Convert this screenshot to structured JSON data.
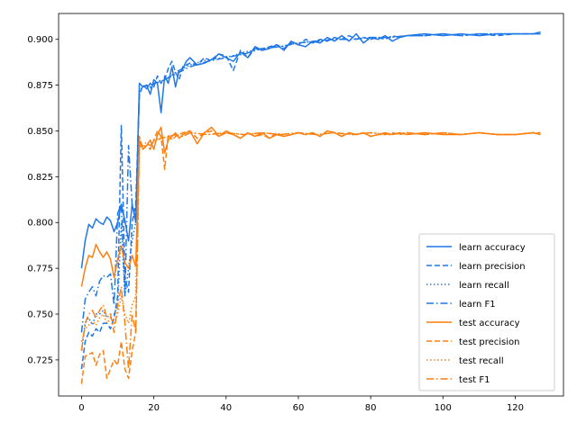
{
  "chart_data": {
    "type": "line",
    "title": "",
    "xlabel": "",
    "ylabel": "",
    "xlim": [
      -6.35,
      133.35
    ],
    "ylim": [
      0.7053,
      0.9141
    ],
    "xticks": [
      0,
      20,
      40,
      60,
      80,
      100,
      120
    ],
    "yticks": [
      0.725,
      0.75,
      0.775,
      0.8,
      0.825,
      0.85,
      0.875,
      0.9
    ],
    "ytick_format": 3,
    "grid": false,
    "legend": {
      "position": "lower-right"
    },
    "colors": {
      "learn": "#1f77e8",
      "test": "#ff7f0e"
    },
    "series": [
      {
        "name": "learn accuracy",
        "color": "#1f77e8",
        "dash": "solid",
        "x": [
          0,
          1,
          2,
          3,
          4,
          5,
          6,
          7,
          8,
          9,
          10,
          11,
          12,
          13,
          14,
          15,
          16,
          17,
          18,
          19,
          20,
          21,
          22,
          23,
          24,
          25,
          26,
          27,
          28,
          29,
          30,
          32,
          34,
          36,
          38,
          40,
          42,
          44,
          46,
          48,
          50,
          52,
          54,
          56,
          58,
          60,
          62,
          64,
          66,
          68,
          70,
          72,
          74,
          76,
          78,
          80,
          82,
          84,
          86,
          88,
          90,
          95,
          100,
          105,
          110,
          115,
          120,
          125,
          127
        ],
        "y": [
          0.775,
          0.79,
          0.799,
          0.797,
          0.802,
          0.8,
          0.799,
          0.803,
          0.801,
          0.795,
          0.8,
          0.81,
          0.801,
          0.79,
          0.81,
          0.8,
          0.876,
          0.874,
          0.875,
          0.87,
          0.878,
          0.876,
          0.86,
          0.88,
          0.876,
          0.885,
          0.874,
          0.883,
          0.884,
          0.888,
          0.89,
          0.886,
          0.887,
          0.889,
          0.892,
          0.89,
          0.888,
          0.893,
          0.89,
          0.896,
          0.894,
          0.895,
          0.897,
          0.894,
          0.899,
          0.897,
          0.896,
          0.899,
          0.898,
          0.901,
          0.899,
          0.902,
          0.899,
          0.903,
          0.898,
          0.901,
          0.9,
          0.902,
          0.899,
          0.901,
          0.902,
          0.903,
          0.902,
          0.903,
          0.902,
          0.903,
          0.903,
          0.903,
          0.904
        ]
      },
      {
        "name": "learn precision",
        "color": "#1f77e8",
        "dash": "6,3",
        "x": [
          0,
          1,
          2,
          3,
          4,
          5,
          6,
          7,
          8,
          9,
          10,
          11,
          12,
          13,
          14,
          15,
          16,
          17,
          18,
          19,
          20,
          21,
          22,
          23,
          24,
          25,
          26,
          27,
          28,
          30,
          32,
          34,
          36,
          38,
          40,
          42,
          44,
          46,
          48,
          50,
          52,
          54,
          56,
          58,
          60,
          62,
          64,
          66,
          68,
          70,
          72,
          74,
          76,
          78,
          80,
          82,
          84,
          86,
          88,
          90,
          95,
          100,
          105,
          110,
          115,
          120,
          125,
          127
        ],
        "y": [
          0.72,
          0.735,
          0.74,
          0.738,
          0.742,
          0.74,
          0.745,
          0.745,
          0.742,
          0.748,
          0.76,
          0.853,
          0.77,
          0.762,
          0.8,
          0.81,
          0.87,
          0.875,
          0.873,
          0.876,
          0.874,
          0.88,
          0.876,
          0.878,
          0.884,
          0.888,
          0.882,
          0.878,
          0.885,
          0.887,
          0.886,
          0.89,
          0.888,
          0.892,
          0.891,
          0.883,
          0.894,
          0.89,
          0.895,
          0.894,
          0.896,
          0.897,
          0.895,
          0.898,
          0.897,
          0.9,
          0.898,
          0.9,
          0.899,
          0.901,
          0.9,
          0.902,
          0.9,
          0.901,
          0.9,
          0.901,
          0.9,
          0.902,
          0.901,
          0.902,
          0.902,
          0.903,
          0.902,
          0.903,
          0.902,
          0.903,
          0.903,
          0.903
        ]
      },
      {
        "name": "learn recall",
        "color": "#1f77e8",
        "dash": "1.5,2.5",
        "x": [
          0,
          1,
          2,
          3,
          4,
          5,
          6,
          7,
          8,
          9,
          10,
          11,
          12,
          13,
          14,
          15,
          16,
          17,
          18,
          19,
          20,
          22,
          24,
          26,
          28,
          30,
          35,
          40,
          45,
          50,
          55,
          60,
          65,
          70,
          75,
          80,
          85,
          90,
          95,
          100,
          105,
          110,
          115,
          120,
          125,
          127
        ],
        "y": [
          0.73,
          0.745,
          0.748,
          0.744,
          0.75,
          0.75,
          0.752,
          0.748,
          0.75,
          0.75,
          0.755,
          0.8,
          0.76,
          0.775,
          0.79,
          0.8,
          0.872,
          0.874,
          0.875,
          0.874,
          0.876,
          0.877,
          0.879,
          0.882,
          0.884,
          0.886,
          0.889,
          0.89,
          0.893,
          0.895,
          0.896,
          0.898,
          0.899,
          0.9,
          0.9,
          0.901,
          0.901,
          0.902,
          0.902,
          0.903,
          0.902,
          0.903,
          0.903,
          0.903,
          0.903,
          0.904
        ]
      },
      {
        "name": "learn F1",
        "color": "#1f77e8",
        "dash": "8,3,1.5,3",
        "x": [
          0,
          1,
          2,
          3,
          4,
          5,
          6,
          7,
          8,
          9,
          10,
          11,
          12,
          13,
          14,
          15,
          16,
          17,
          18,
          19,
          20,
          22,
          24,
          26,
          28,
          30,
          35,
          40,
          45,
          50,
          55,
          60,
          65,
          70,
          75,
          80,
          85,
          90,
          95,
          100,
          105,
          110,
          115,
          120,
          125,
          127
        ],
        "y": [
          0.74,
          0.758,
          0.762,
          0.765,
          0.76,
          0.768,
          0.771,
          0.77,
          0.772,
          0.755,
          0.805,
          0.81,
          0.76,
          0.842,
          0.81,
          0.802,
          0.87,
          0.874,
          0.875,
          0.873,
          0.876,
          0.877,
          0.879,
          0.881,
          0.883,
          0.885,
          0.888,
          0.89,
          0.892,
          0.895,
          0.896,
          0.898,
          0.899,
          0.9,
          0.9,
          0.901,
          0.901,
          0.902,
          0.902,
          0.903,
          0.902,
          0.903,
          0.903,
          0.903,
          0.903,
          0.903
        ]
      },
      {
        "name": "test accuracy",
        "color": "#ff7f0e",
        "dash": "solid",
        "x": [
          0,
          1,
          2,
          3,
          4,
          5,
          6,
          7,
          8,
          9,
          10,
          11,
          12,
          13,
          14,
          15,
          16,
          17,
          18,
          19,
          20,
          21,
          22,
          23,
          24,
          25,
          26,
          27,
          28,
          30,
          32,
          34,
          36,
          38,
          40,
          42,
          44,
          46,
          48,
          50,
          52,
          54,
          56,
          58,
          60,
          62,
          64,
          66,
          68,
          70,
          72,
          74,
          76,
          78,
          80,
          82,
          84,
          86,
          88,
          90,
          95,
          100,
          105,
          110,
          115,
          120,
          125,
          127
        ],
        "y": [
          0.765,
          0.775,
          0.782,
          0.781,
          0.788,
          0.784,
          0.781,
          0.784,
          0.78,
          0.77,
          0.78,
          0.787,
          0.778,
          0.775,
          0.782,
          0.776,
          0.845,
          0.84,
          0.842,
          0.845,
          0.84,
          0.848,
          0.852,
          0.838,
          0.845,
          0.847,
          0.849,
          0.846,
          0.848,
          0.85,
          0.843,
          0.849,
          0.852,
          0.847,
          0.85,
          0.848,
          0.846,
          0.849,
          0.847,
          0.849,
          0.846,
          0.848,
          0.847,
          0.848,
          0.849,
          0.848,
          0.849,
          0.847,
          0.85,
          0.849,
          0.847,
          0.849,
          0.848,
          0.849,
          0.847,
          0.848,
          0.849,
          0.848,
          0.849,
          0.848,
          0.849,
          0.848,
          0.848,
          0.849,
          0.848,
          0.848,
          0.849,
          0.848
        ]
      },
      {
        "name": "test precision",
        "color": "#ff7f0e",
        "dash": "6,3",
        "x": [
          0,
          1,
          2,
          3,
          4,
          5,
          6,
          7,
          8,
          9,
          10,
          11,
          12,
          13,
          14,
          15,
          16,
          17,
          18,
          19,
          20,
          21,
          22,
          23,
          24,
          25,
          26,
          28,
          30,
          32,
          34,
          36,
          38,
          40,
          42,
          44,
          46,
          48,
          50,
          52,
          54,
          56,
          58,
          60,
          62,
          64,
          66,
          68,
          70,
          72,
          74,
          76,
          78,
          80,
          82,
          84,
          86,
          88,
          90,
          95,
          100,
          105,
          110,
          115,
          120,
          125,
          127
        ],
        "y": [
          0.712,
          0.727,
          0.728,
          0.729,
          0.722,
          0.728,
          0.73,
          0.715,
          0.72,
          0.725,
          0.722,
          0.735,
          0.72,
          0.715,
          0.73,
          0.74,
          0.847,
          0.84,
          0.842,
          0.84,
          0.845,
          0.85,
          0.847,
          0.829,
          0.848,
          0.845,
          0.847,
          0.849,
          0.85,
          0.846,
          0.849,
          0.85,
          0.847,
          0.849,
          0.848,
          0.846,
          0.849,
          0.847,
          0.848,
          0.846,
          0.849,
          0.847,
          0.848,
          0.849,
          0.848,
          0.849,
          0.847,
          0.85,
          0.849,
          0.847,
          0.849,
          0.848,
          0.849,
          0.847,
          0.848,
          0.848,
          0.849,
          0.848,
          0.849,
          0.848,
          0.849,
          0.848,
          0.849,
          0.848,
          0.848,
          0.849,
          0.849
        ]
      },
      {
        "name": "test recall",
        "color": "#ff7f0e",
        "dash": "1.5,2.5",
        "x": [
          0,
          1,
          2,
          3,
          4,
          5,
          6,
          7,
          8,
          9,
          10,
          11,
          12,
          13,
          14,
          15,
          16,
          17,
          18,
          19,
          20,
          22,
          24,
          26,
          28,
          30,
          35,
          40,
          45,
          50,
          55,
          60,
          65,
          70,
          75,
          80,
          85,
          90,
          95,
          100,
          105,
          110,
          115,
          120,
          125,
          127
        ],
        "y": [
          0.735,
          0.742,
          0.744,
          0.746,
          0.744,
          0.748,
          0.75,
          0.745,
          0.748,
          0.745,
          0.75,
          0.76,
          0.75,
          0.745,
          0.755,
          0.76,
          0.843,
          0.842,
          0.844,
          0.843,
          0.845,
          0.846,
          0.847,
          0.848,
          0.847,
          0.849,
          0.848,
          0.849,
          0.848,
          0.849,
          0.848,
          0.849,
          0.848,
          0.849,
          0.848,
          0.849,
          0.848,
          0.849,
          0.848,
          0.849,
          0.848,
          0.849,
          0.848,
          0.848,
          0.849,
          0.848
        ]
      },
      {
        "name": "test F1",
        "color": "#ff7f0e",
        "dash": "8,3,1.5,3",
        "x": [
          0,
          1,
          2,
          3,
          4,
          5,
          6,
          7,
          8,
          9,
          10,
          11,
          12,
          13,
          14,
          15,
          16,
          17,
          18,
          19,
          20,
          22,
          24,
          26,
          28,
          30,
          35,
          40,
          45,
          50,
          55,
          60,
          65,
          70,
          75,
          80,
          85,
          90,
          95,
          100,
          105,
          110,
          115,
          120,
          125,
          127
        ],
        "y": [
          0.73,
          0.745,
          0.75,
          0.752,
          0.748,
          0.752,
          0.755,
          0.748,
          0.75,
          0.74,
          0.755,
          0.765,
          0.745,
          0.72,
          0.75,
          0.74,
          0.842,
          0.841,
          0.843,
          0.842,
          0.844,
          0.846,
          0.847,
          0.848,
          0.847,
          0.849,
          0.848,
          0.849,
          0.848,
          0.849,
          0.848,
          0.849,
          0.848,
          0.849,
          0.848,
          0.849,
          0.848,
          0.849,
          0.848,
          0.849,
          0.848,
          0.849,
          0.848,
          0.848,
          0.849,
          0.848
        ]
      }
    ]
  }
}
